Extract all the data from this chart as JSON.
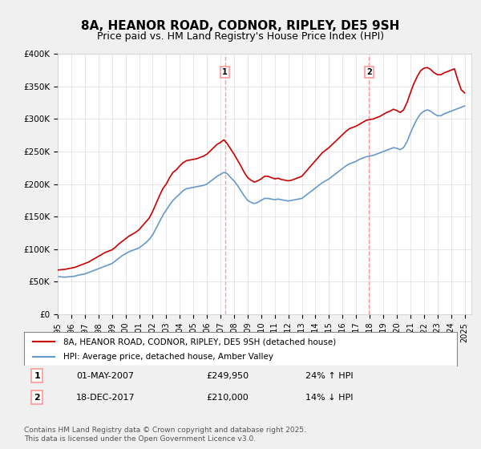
{
  "title": "8A, HEANOR ROAD, CODNOR, RIPLEY, DE5 9SH",
  "subtitle": "Price paid vs. HM Land Registry's House Price Index (HPI)",
  "title_fontsize": 11,
  "subtitle_fontsize": 9,
  "background_color": "#f0f0f0",
  "plot_bg_color": "#ffffff",
  "ylim": [
    0,
    400000
  ],
  "yticks": [
    0,
    50000,
    100000,
    150000,
    200000,
    250000,
    300000,
    350000,
    400000
  ],
  "ytick_labels": [
    "£0",
    "£50K",
    "£100K",
    "£150K",
    "£200K",
    "£250K",
    "£300K",
    "£350K",
    "£400K"
  ],
  "xlim_start": 1995.0,
  "xlim_end": 2025.5,
  "red_color": "#cc0000",
  "blue_color": "#6699cc",
  "dashed_color": "#ff9999",
  "sale1_x": 2007.33,
  "sale1_y": 249950,
  "sale2_x": 2017.96,
  "sale2_y": 210000,
  "legend_line1": "8A, HEANOR ROAD, CODNOR, RIPLEY, DE5 9SH (detached house)",
  "legend_line2": "HPI: Average price, detached house, Amber Valley",
  "annot1_label": "1",
  "annot1_date": "01-MAY-2007",
  "annot1_price": "£249,950",
  "annot1_hpi": "24% ↑ HPI",
  "annot2_label": "2",
  "annot2_date": "18-DEC-2017",
  "annot2_price": "£210,000",
  "annot2_hpi": "14% ↓ HPI",
  "footer": "Contains HM Land Registry data © Crown copyright and database right 2025.\nThis data is licensed under the Open Government Licence v3.0.",
  "hpi_data_x": [
    1995.0,
    1995.25,
    1995.5,
    1995.75,
    1996.0,
    1996.25,
    1996.5,
    1996.75,
    1997.0,
    1997.25,
    1997.5,
    1997.75,
    1998.0,
    1998.25,
    1998.5,
    1998.75,
    1999.0,
    1999.25,
    1999.5,
    1999.75,
    2000.0,
    2000.25,
    2000.5,
    2000.75,
    2001.0,
    2001.25,
    2001.5,
    2001.75,
    2002.0,
    2002.25,
    2002.5,
    2002.75,
    2003.0,
    2003.25,
    2003.5,
    2003.75,
    2004.0,
    2004.25,
    2004.5,
    2004.75,
    2005.0,
    2005.25,
    2005.5,
    2005.75,
    2006.0,
    2006.25,
    2006.5,
    2006.75,
    2007.0,
    2007.25,
    2007.5,
    2007.75,
    2008.0,
    2008.25,
    2008.5,
    2008.75,
    2009.0,
    2009.25,
    2009.5,
    2009.75,
    2010.0,
    2010.25,
    2010.5,
    2010.75,
    2011.0,
    2011.25,
    2011.5,
    2011.75,
    2012.0,
    2012.25,
    2012.5,
    2012.75,
    2013.0,
    2013.25,
    2013.5,
    2013.75,
    2014.0,
    2014.25,
    2014.5,
    2014.75,
    2015.0,
    2015.25,
    2015.5,
    2015.75,
    2016.0,
    2016.25,
    2016.5,
    2016.75,
    2017.0,
    2017.25,
    2017.5,
    2017.75,
    2018.0,
    2018.25,
    2018.5,
    2018.75,
    2019.0,
    2019.25,
    2019.5,
    2019.75,
    2020.0,
    2020.25,
    2020.5,
    2020.75,
    2021.0,
    2021.25,
    2021.5,
    2021.75,
    2022.0,
    2022.25,
    2022.5,
    2022.75,
    2023.0,
    2023.25,
    2023.5,
    2023.75,
    2024.0,
    2024.25,
    2024.5,
    2024.75,
    2025.0
  ],
  "hpi_data_y": [
    58000,
    57500,
    57000,
    57500,
    58000,
    58500,
    60000,
    61000,
    62000,
    64000,
    66000,
    68000,
    70000,
    72000,
    74000,
    76000,
    78000,
    82000,
    86000,
    90000,
    93000,
    96000,
    98000,
    100000,
    102000,
    106000,
    110000,
    115000,
    122000,
    132000,
    142000,
    152000,
    160000,
    168000,
    175000,
    180000,
    185000,
    190000,
    193000,
    194000,
    195000,
    196000,
    197000,
    198000,
    200000,
    204000,
    208000,
    212000,
    215000,
    218000,
    216000,
    210000,
    205000,
    198000,
    190000,
    182000,
    175000,
    172000,
    170000,
    172000,
    175000,
    178000,
    178000,
    177000,
    176000,
    177000,
    176000,
    175000,
    174000,
    175000,
    176000,
    177000,
    178000,
    182000,
    186000,
    190000,
    194000,
    198000,
    202000,
    205000,
    208000,
    212000,
    216000,
    220000,
    224000,
    228000,
    231000,
    233000,
    235000,
    238000,
    240000,
    242000,
    243000,
    244000,
    246000,
    248000,
    250000,
    252000,
    254000,
    256000,
    255000,
    253000,
    256000,
    265000,
    278000,
    290000,
    300000,
    308000,
    312000,
    314000,
    312000,
    308000,
    305000,
    305000,
    308000,
    310000,
    312000,
    314000,
    316000,
    318000,
    320000
  ],
  "price_data_x": [
    1995.0,
    1995.25,
    1995.5,
    1995.75,
    1996.0,
    1996.25,
    1996.5,
    1996.75,
    1997.0,
    1997.25,
    1997.5,
    1997.75,
    1998.0,
    1998.25,
    1998.5,
    1998.75,
    1999.0,
    1999.25,
    1999.5,
    1999.75,
    2000.0,
    2000.25,
    2000.5,
    2000.75,
    2001.0,
    2001.25,
    2001.5,
    2001.75,
    2002.0,
    2002.25,
    2002.5,
    2002.75,
    2003.0,
    2003.25,
    2003.5,
    2003.75,
    2004.0,
    2004.25,
    2004.5,
    2004.75,
    2005.0,
    2005.25,
    2005.5,
    2005.75,
    2006.0,
    2006.25,
    2006.5,
    2006.75,
    2007.0,
    2007.25,
    2007.5,
    2007.75,
    2008.0,
    2008.25,
    2008.5,
    2008.75,
    2009.0,
    2009.25,
    2009.5,
    2009.75,
    2010.0,
    2010.25,
    2010.5,
    2010.75,
    2011.0,
    2011.25,
    2011.5,
    2011.75,
    2012.0,
    2012.25,
    2012.5,
    2012.75,
    2013.0,
    2013.25,
    2013.5,
    2013.75,
    2014.0,
    2014.25,
    2014.5,
    2014.75,
    2015.0,
    2015.25,
    2015.5,
    2015.75,
    2016.0,
    2016.25,
    2016.5,
    2016.75,
    2017.0,
    2017.25,
    2017.5,
    2017.75,
    2018.0,
    2018.25,
    2018.5,
    2018.75,
    2019.0,
    2019.25,
    2019.5,
    2019.75,
    2020.0,
    2020.25,
    2020.5,
    2020.75,
    2021.0,
    2021.25,
    2021.5,
    2021.75,
    2022.0,
    2022.25,
    2022.5,
    2022.75,
    2023.0,
    2023.25,
    2023.5,
    2023.75,
    2024.0,
    2024.25,
    2024.5,
    2024.75,
    2025.0
  ],
  "price_data_y": [
    68000,
    68500,
    69000,
    70000,
    71000,
    72000,
    74000,
    76000,
    78000,
    80000,
    83000,
    86000,
    89000,
    92000,
    95000,
    97000,
    99000,
    103000,
    108000,
    112000,
    116000,
    120000,
    123000,
    126000,
    130000,
    136000,
    142000,
    148000,
    158000,
    170000,
    182000,
    193000,
    200000,
    210000,
    218000,
    222000,
    228000,
    233000,
    236000,
    237000,
    238000,
    239000,
    241000,
    243000,
    246000,
    251000,
    256000,
    261000,
    264000,
    268000,
    262000,
    254000,
    246000,
    237000,
    228000,
    218000,
    210000,
    206000,
    203000,
    205000,
    208000,
    212000,
    212000,
    210000,
    208000,
    209000,
    207000,
    206000,
    205000,
    206000,
    208000,
    210000,
    212000,
    218000,
    224000,
    230000,
    236000,
    242000,
    248000,
    252000,
    256000,
    261000,
    266000,
    271000,
    276000,
    281000,
    285000,
    287000,
    289000,
    292000,
    295000,
    298000,
    299000,
    300000,
    302000,
    304000,
    307000,
    310000,
    312000,
    315000,
    313000,
    310000,
    314000,
    325000,
    340000,
    354000,
    365000,
    374000,
    378000,
    379000,
    376000,
    371000,
    368000,
    368000,
    371000,
    373000,
    375000,
    377000,
    360000,
    345000,
    340000
  ]
}
